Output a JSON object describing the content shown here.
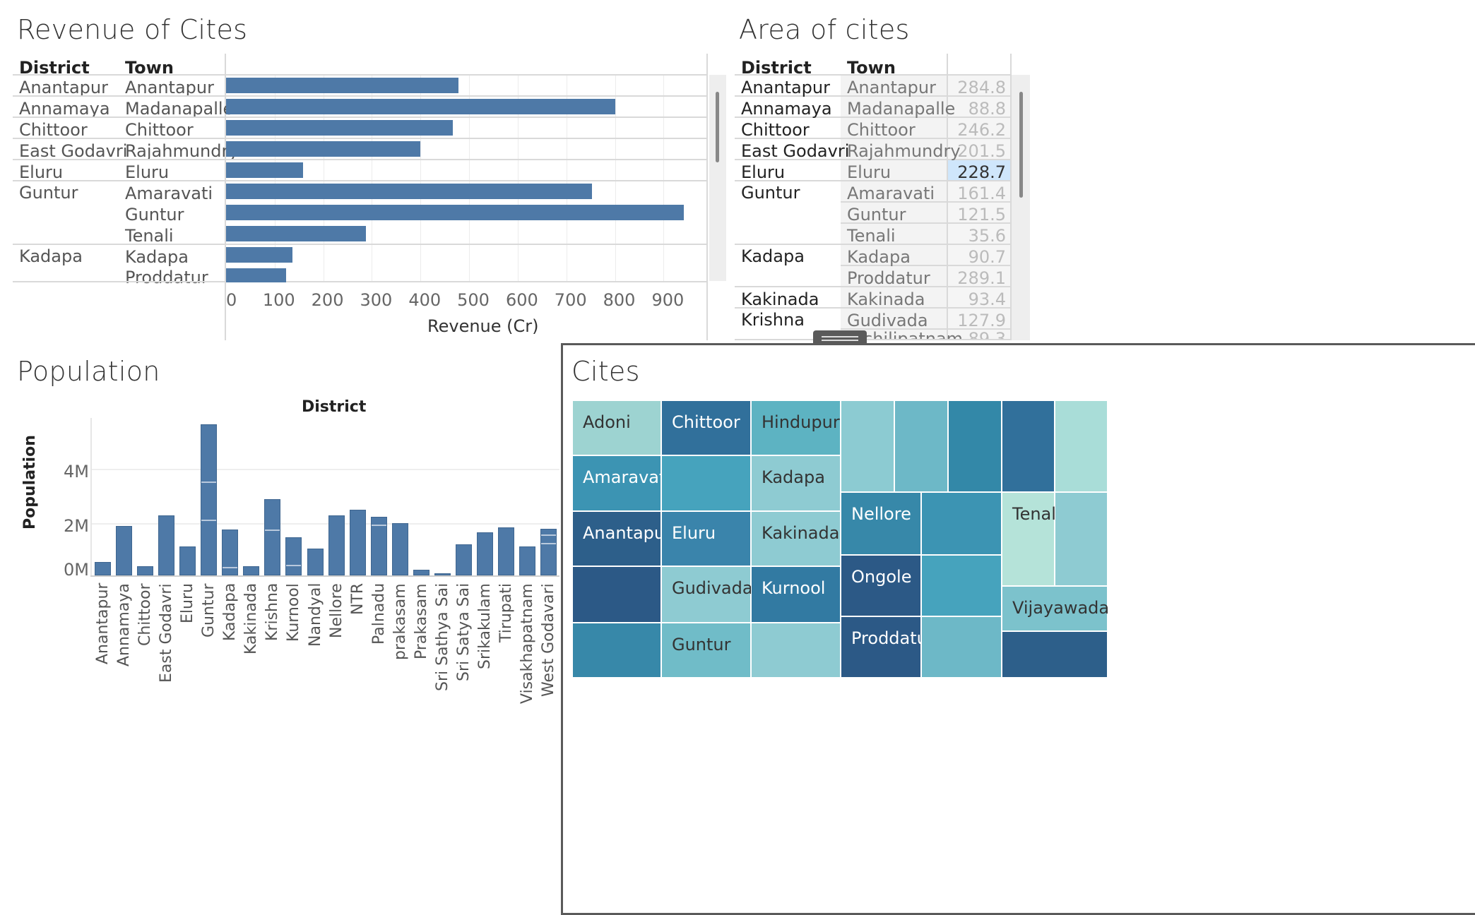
{
  "revenue": {
    "title": "Revenue of Cites",
    "col_district": "District",
    "col_town": "Town",
    "axis_title": "Revenue (Cr)",
    "ticks": [
      "0",
      "100",
      "200",
      "300",
      "400",
      "500",
      "600",
      "700",
      "800",
      "900"
    ],
    "rows": [
      {
        "district": "Anantapur",
        "town": "Anantapur",
        "value": 478
      },
      {
        "district": "Annamaya",
        "town": "Madanapalle",
        "value": 800
      },
      {
        "district": "Chittoor",
        "town": "Chittoor",
        "value": 467
      },
      {
        "district": "East Godavri",
        "town": "Rajahmundry",
        "value": 400
      },
      {
        "district": "Eluru",
        "town": "Eluru",
        "value": 158
      },
      {
        "district": "Guntur",
        "town": "Amaravati",
        "value": 752
      },
      {
        "district": "",
        "town": "Guntur",
        "value": 942
      },
      {
        "district": "",
        "town": "Tenali",
        "value": 287
      },
      {
        "district": "Kadapa",
        "town": "Kadapa",
        "value": 136
      },
      {
        "district": "",
        "town": "Proddatur",
        "value": 123
      }
    ]
  },
  "area": {
    "title": "Area of cites",
    "col_district": "District",
    "col_town": "Town",
    "rows": [
      {
        "district": "Anantapur",
        "town": "Anantapur",
        "value": "284.8"
      },
      {
        "district": "Annamaya",
        "town": "Madanapalle",
        "value": "88.8"
      },
      {
        "district": "Chittoor",
        "town": "Chittoor",
        "value": "246.2"
      },
      {
        "district": "East Godavri",
        "town": "Rajahmundry",
        "value": "201.5"
      },
      {
        "district": "Eluru",
        "town": "Eluru",
        "value": "228.7"
      },
      {
        "district": "Guntur",
        "town": "Amaravati",
        "value": "161.4"
      },
      {
        "district": "",
        "town": "Guntur",
        "value": "121.5"
      },
      {
        "district": "",
        "town": "Tenali",
        "value": "35.6"
      },
      {
        "district": "Kadapa",
        "town": "Kadapa",
        "value": "90.7"
      },
      {
        "district": "",
        "town": "Proddatur",
        "value": "289.1"
      },
      {
        "district": "Kakinada",
        "town": "Kakinada",
        "value": "93.4"
      },
      {
        "district": "Krishna",
        "town": "Gudivada",
        "value": "127.9"
      }
    ],
    "partial_town": "chilipatnam",
    "partial_value": "89.3"
  },
  "population": {
    "title": "Population",
    "top_label": "District",
    "ylabel": "Population",
    "ticks": [
      "4M",
      "2M",
      "0M"
    ]
  },
  "chart_data": {
    "type": "bar",
    "title": "Population",
    "xlabel": "District",
    "ylabel": "Population",
    "ylim": [
      0,
      5600000
    ],
    "categories": [
      "Anantapur",
      "Annamaya",
      "Chittoor",
      "East Godavri",
      "Eluru",
      "Guntur",
      "Kadapa",
      "Kakinada",
      "Krishna",
      "Kurnool",
      "Nandyal",
      "Nellore",
      "NTR",
      "Palnadu",
      "prakasam",
      "Prakasam",
      "Sri Sathya Sai",
      "Sri Satya Sai",
      "Srikakulam",
      "Tirupati",
      "Visakhapatnam",
      "West Godavari"
    ],
    "values": [
      500000,
      1830000,
      340000,
      2230000,
      1080000,
      5600000,
      1690000,
      350000,
      2820000,
      1420000,
      990000,
      2210000,
      2420000,
      2180000,
      1940000,
      200000,
      90000,
      1140000,
      1590000,
      1790000,
      1080000,
      1720000
    ]
  },
  "treemap": {
    "title": "Cites",
    "labels": [
      "Adoni",
      "Chittoor",
      "Hindupur",
      "Amaravati",
      "Kadapa",
      "Anantapur",
      "Eluru",
      "Kakinada",
      "Gudivada",
      "Kurnool",
      "Guntur",
      "Nellore",
      "Ongole",
      "Proddatur",
      "Tenali",
      "Vijayawada"
    ]
  },
  "colors": {
    "bar": "#4e79a7",
    "highlight": "#cfe6fb"
  }
}
